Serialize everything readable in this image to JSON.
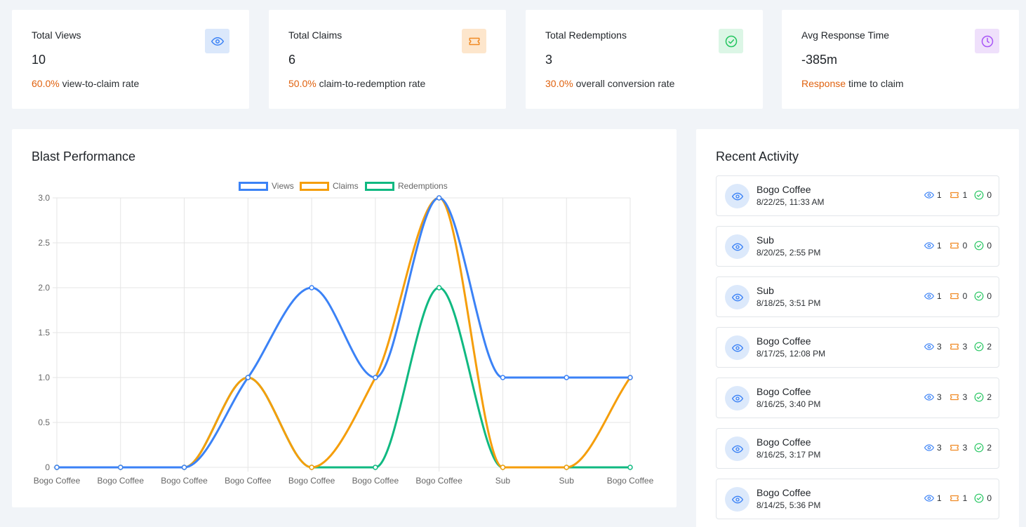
{
  "stats": [
    {
      "title": "Total Views",
      "value": "10",
      "accent": "60.0%",
      "suffix": "view-to-claim rate",
      "icon": "eye-icon",
      "icon_bg": "#dbe8fb",
      "icon_color": "#3b82f6"
    },
    {
      "title": "Total Claims",
      "value": "6",
      "accent": "50.0%",
      "suffix": "claim-to-redemption rate",
      "icon": "ticket-icon",
      "icon_bg": "#fde6cc",
      "icon_color": "#f08a24"
    },
    {
      "title": "Total Redemptions",
      "value": "3",
      "accent": "30.0%",
      "suffix": "overall conversion rate",
      "icon": "check-circle-icon",
      "icon_bg": "#dcf6e6",
      "icon_color": "#22c55e"
    },
    {
      "title": "Avg Response Time",
      "value": "-385m",
      "accent": "Response",
      "suffix": "time to claim",
      "icon": "clock-icon",
      "icon_bg": "#efe0fb",
      "icon_color": "#a855f7"
    }
  ],
  "performance": {
    "title": "Blast Performance"
  },
  "chart_data": {
    "type": "line",
    "categories": [
      "Bogo Coffee",
      "Bogo Coffee",
      "Bogo Coffee",
      "Bogo Coffee",
      "Bogo Coffee",
      "Bogo Coffee",
      "Bogo Coffee",
      "Sub",
      "Sub",
      "Bogo Coffee"
    ],
    "series": [
      {
        "name": "Views",
        "color": "#3b82f6",
        "values": [
          0,
          0,
          0,
          1,
          2,
          1,
          3,
          1,
          1,
          1
        ]
      },
      {
        "name": "Claims",
        "color": "#f59e0b",
        "values": [
          0,
          0,
          0,
          1,
          0,
          1,
          3,
          0,
          0,
          1
        ]
      },
      {
        "name": "Redemptions",
        "color": "#10b981",
        "values": [
          0,
          0,
          0,
          1,
          0,
          0,
          2,
          0,
          0,
          0
        ]
      }
    ],
    "ylim": [
      0,
      3
    ],
    "yticks": [
      "0",
      "0.5",
      "1.0",
      "1.5",
      "2.0",
      "2.5",
      "3.0"
    ],
    "grid": true,
    "legend": "top-center"
  },
  "activity": {
    "title": "Recent Activity",
    "items": [
      {
        "name": "Bogo Coffee",
        "date": "8/22/25, 11:33 AM",
        "views": "1",
        "claims": "1",
        "redemptions": "0"
      },
      {
        "name": "Sub",
        "date": "8/20/25, 2:55 PM",
        "views": "1",
        "claims": "0",
        "redemptions": "0"
      },
      {
        "name": "Sub",
        "date": "8/18/25, 3:51 PM",
        "views": "1",
        "claims": "0",
        "redemptions": "0"
      },
      {
        "name": "Bogo Coffee",
        "date": "8/17/25, 12:08 PM",
        "views": "3",
        "claims": "3",
        "redemptions": "2"
      },
      {
        "name": "Bogo Coffee",
        "date": "8/16/25, 3:40 PM",
        "views": "3",
        "claims": "3",
        "redemptions": "2"
      },
      {
        "name": "Bogo Coffee",
        "date": "8/16/25, 3:17 PM",
        "views": "3",
        "claims": "3",
        "redemptions": "2"
      },
      {
        "name": "Bogo Coffee",
        "date": "8/14/25, 5:36 PM",
        "views": "1",
        "claims": "1",
        "redemptions": "0"
      }
    ]
  },
  "colors": {
    "accent_orange": "#e0620f",
    "views": "#3b82f6",
    "claims": "#f08a24",
    "redemptions": "#22c55e"
  }
}
